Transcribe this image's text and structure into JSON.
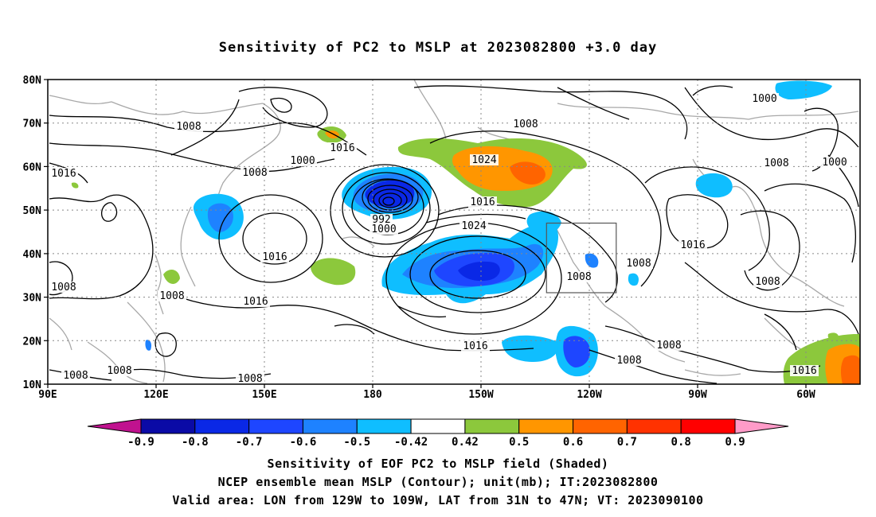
{
  "title": "Sensitivity of PC2 to MSLP at 2023082800 +3.0 day",
  "map": {
    "lat_labels": [
      "80N",
      "70N",
      "60N",
      "50N",
      "40N",
      "30N",
      "20N",
      "10N"
    ],
    "lon_labels": [
      "90E",
      "120E",
      "150E",
      "180",
      "150W",
      "120W",
      "90W",
      "60W"
    ],
    "valid_area_box": {
      "lon_from": "129W",
      "lon_to": "109W",
      "lat_from": "31N",
      "lat_to": "47N"
    },
    "contour_labels": [
      "1000",
      "1008",
      "1016",
      "1008",
      "1000",
      "1008",
      "1016",
      "1024",
      "992",
      "1000",
      "1008",
      "1016",
      "1024",
      "1016",
      "1008",
      "1008",
      "1016",
      "1000",
      "1008",
      "1016",
      "1008",
      "1008",
      "1008",
      "1016",
      "1008",
      "1008",
      "1008",
      "1016",
      "1008"
    ],
    "colors": {
      "contour": "#000000",
      "coastline": "#a8a8a8",
      "grid": "#888888"
    }
  },
  "colorbar": {
    "labels": [
      "-0.9",
      "-0.8",
      "-0.7",
      "-0.6",
      "-0.5",
      "-0.42",
      "0.42",
      "0.5",
      "0.6",
      "0.7",
      "0.8",
      "0.9"
    ],
    "colors": [
      "#c0128f",
      "#0a0aa6",
      "#0a28e6",
      "#1e46ff",
      "#1e82ff",
      "#0fbeff",
      "#ffffff",
      "#8cc83c",
      "#ff9600",
      "#ff6400",
      "#ff3200",
      "#ff0000",
      "#ff9bc8"
    ]
  },
  "captions": {
    "line1": "Sensitivity of EOF PC2 to MSLP field (Shaded)",
    "line2": "NCEP ensemble mean MSLP (Contour); unit(mb); IT:2023082800",
    "line3": "Valid area: LON from 129W to 109W, LAT from 31N to 47N; VT: 2023090100"
  }
}
